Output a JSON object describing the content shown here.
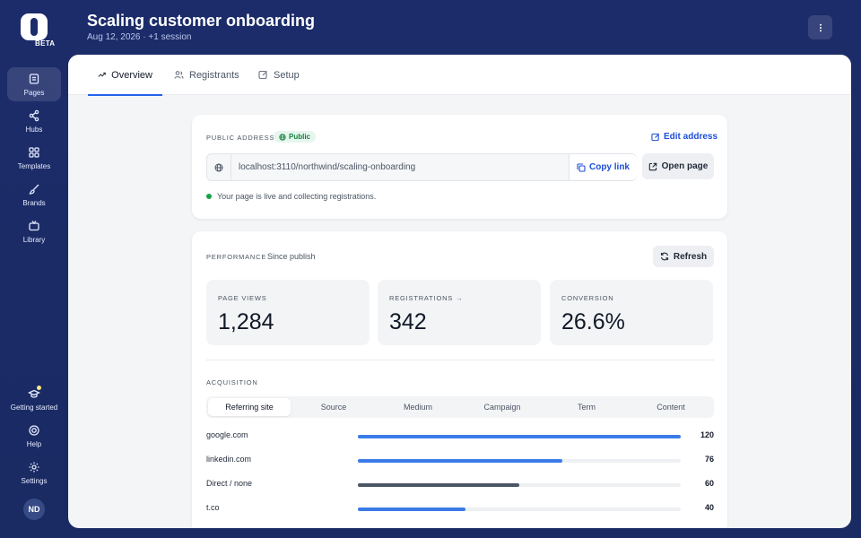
{
  "app": {
    "logo_badge": "BETA"
  },
  "sidebar": {
    "items": [
      {
        "label": "Pages",
        "icon": "pages-icon"
      },
      {
        "label": "Hubs",
        "icon": "share-icon"
      },
      {
        "label": "Templates",
        "icon": "grid-icon"
      },
      {
        "label": "Brands",
        "icon": "brush-icon"
      },
      {
        "label": "Library",
        "icon": "tv-icon"
      }
    ],
    "bottom_items": [
      {
        "label": "Getting started",
        "icon": "graduation-cap-icon"
      },
      {
        "label": "Help",
        "icon": "lifebuoy-icon"
      },
      {
        "label": "Settings",
        "icon": "gear-icon"
      }
    ],
    "avatar_initials": "ND"
  },
  "header": {
    "title": "Scaling customer onboarding",
    "subtitle": "Aug 12, 2026 · +1 session"
  },
  "tabs": [
    {
      "label": "Overview",
      "icon": "trend-icon"
    },
    {
      "label": "Registrants",
      "icon": "users-icon"
    },
    {
      "label": "Setup",
      "icon": "edit-icon"
    }
  ],
  "address_card": {
    "label": "Public address",
    "badge": "Public",
    "edit_label": "Edit address",
    "url": "localhost:3110/northwind/scaling-onboarding",
    "copy_label": "Copy link",
    "open_label": "Open page",
    "status": "Your page is live and collecting registrations."
  },
  "performance": {
    "label": "Performance",
    "since": "Since publish",
    "refresh_label": "Refresh",
    "stats": [
      {
        "label": "Page views",
        "value": "1,284"
      },
      {
        "label": "Registrations →",
        "value": "342"
      },
      {
        "label": "Conversion",
        "value": "26.6%"
      }
    ],
    "acquisition_label": "Acquisition",
    "acquisition_tabs": [
      "Referring site",
      "Source",
      "Medium",
      "Campaign",
      "Term",
      "Content"
    ],
    "acquisition_rows": [
      {
        "name": "google.com",
        "count": "120",
        "fraction": 1.0,
        "color": "#3b7be8"
      },
      {
        "name": "linkedin.com",
        "count": "76",
        "fraction": 0.633,
        "color": "#3b7be8"
      },
      {
        "name": "Direct / none",
        "count": "60",
        "fraction": 0.5,
        "color": "#4b5563"
      },
      {
        "name": "t.co",
        "count": "40",
        "fraction": 0.333,
        "color": "#3b7be8"
      }
    ]
  },
  "colors": {
    "accent": "#2563eb",
    "brand_bg": "#1c2c6a",
    "status_live": "#16a34a"
  }
}
